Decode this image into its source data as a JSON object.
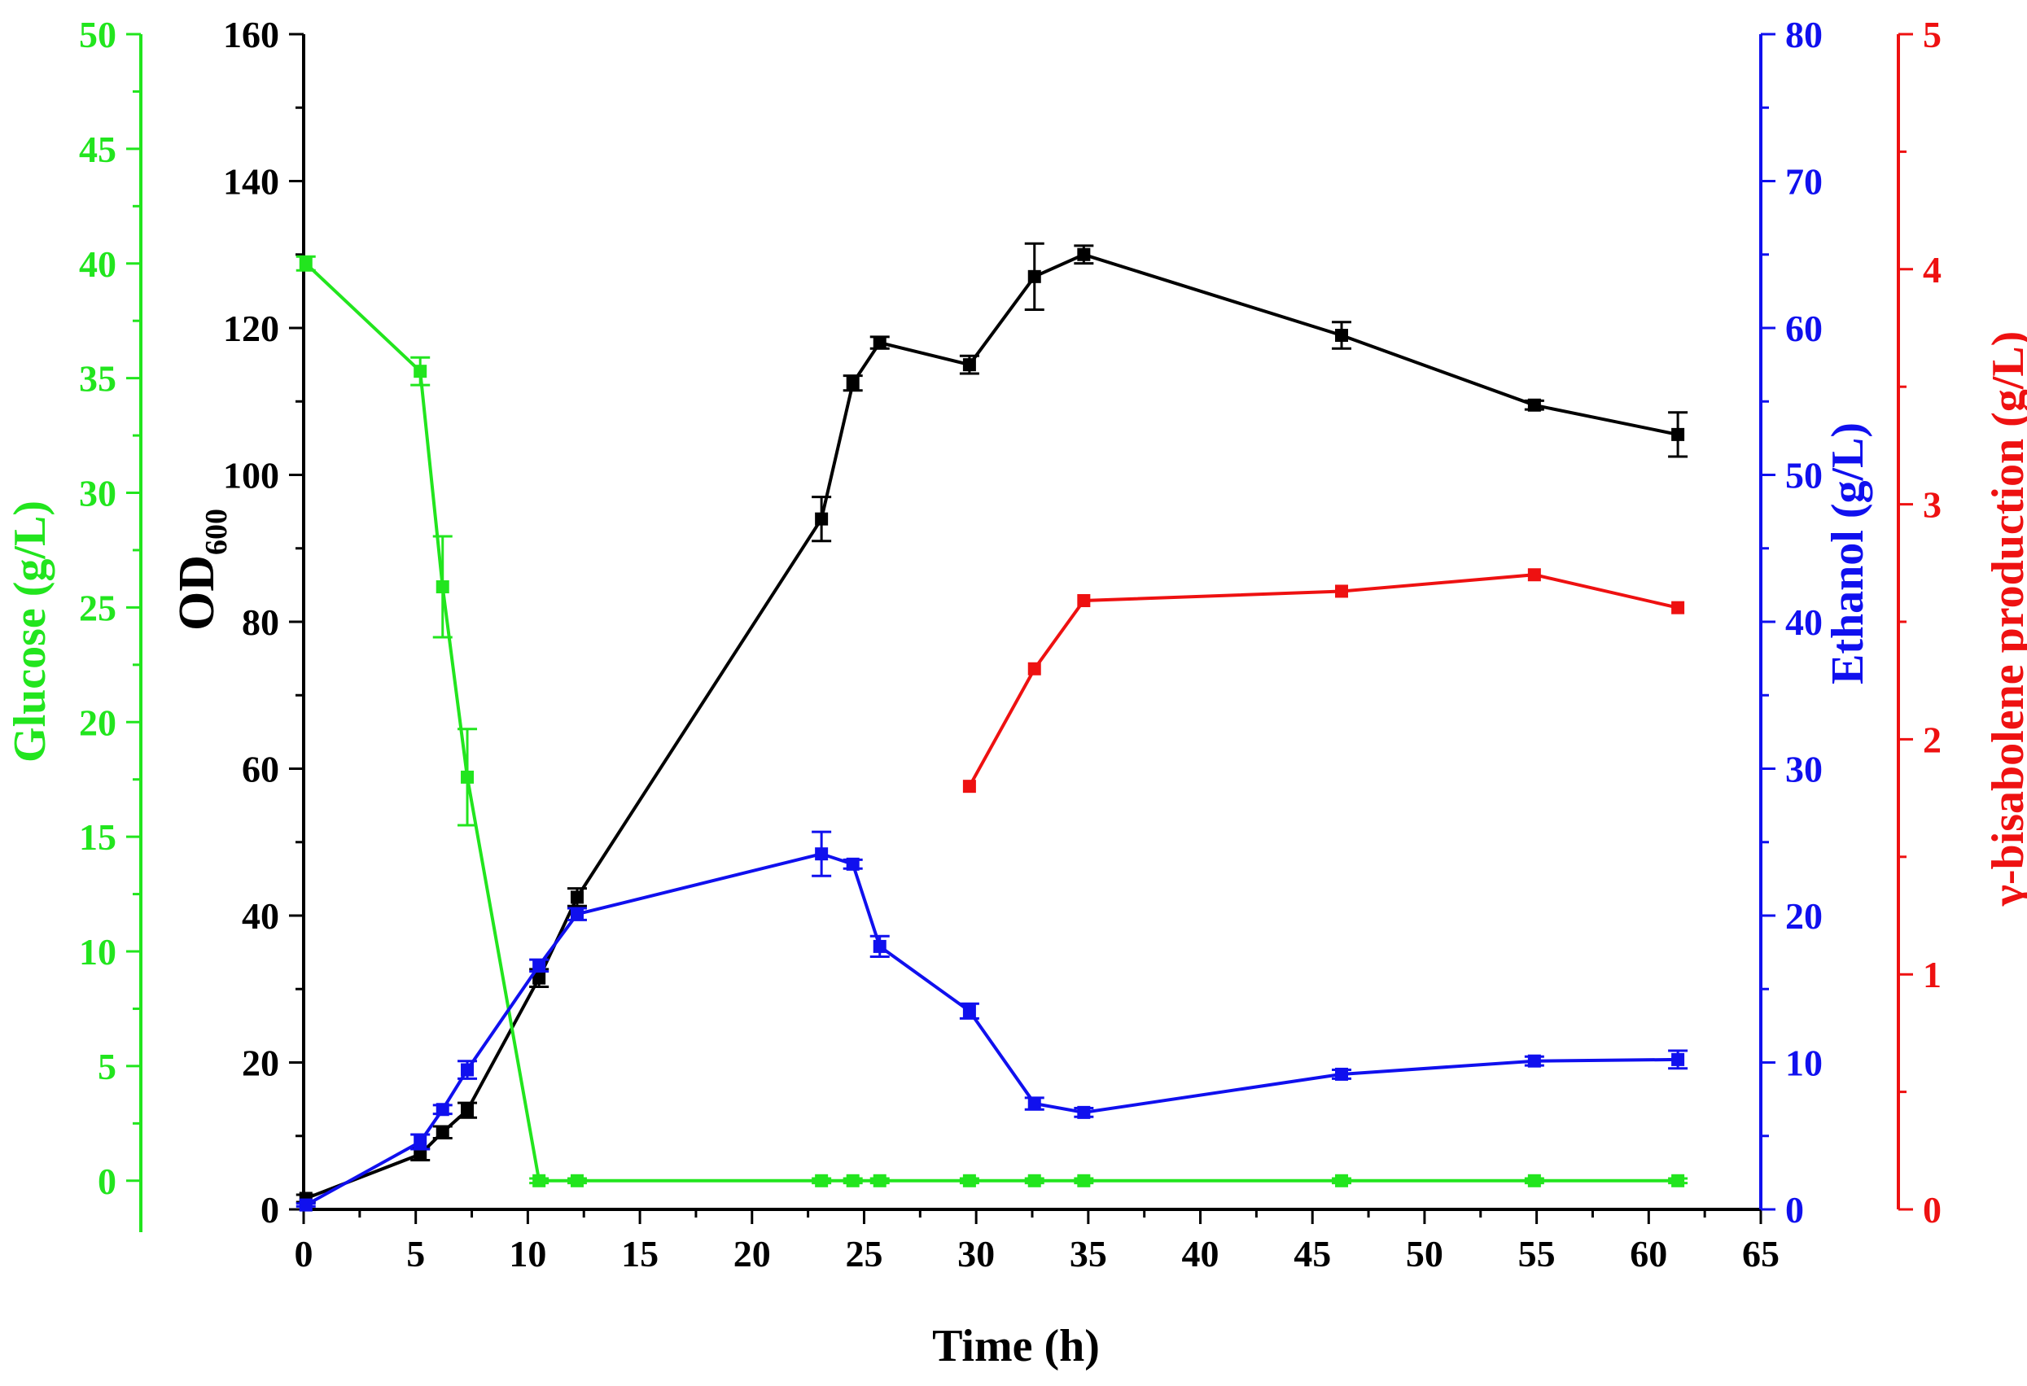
{
  "chart_data": {
    "type": "line",
    "xlabel": "Time (h)",
    "xlim": [
      0,
      65
    ],
    "xticks": [
      0,
      5,
      10,
      15,
      20,
      25,
      30,
      35,
      40,
      45,
      50,
      55,
      60,
      65
    ],
    "axes": {
      "od": {
        "label_main": "OD",
        "label_sub": "600",
        "range": [
          0,
          160
        ],
        "ticks": [
          0,
          20,
          40,
          60,
          80,
          100,
          120,
          140,
          160
        ],
        "minor_step": 10,
        "color": "#000000"
      },
      "glucose": {
        "label": "Glucose (g/L)",
        "range": [
          -1.25,
          50
        ],
        "ticks": [
          0,
          5,
          10,
          15,
          20,
          25,
          30,
          35,
          40,
          45,
          50
        ],
        "minor_step": 2.5,
        "color": "#22e51e"
      },
      "ethanol": {
        "label": "Ethanol (g/L)",
        "range": [
          0,
          80
        ],
        "ticks": [
          0,
          10,
          20,
          30,
          40,
          50,
          60,
          70,
          80
        ],
        "minor_step": 5,
        "color": "#1010ee"
      },
      "bisabolene": {
        "label": "γ-bisabolene production (g/L)",
        "range": [
          0,
          5
        ],
        "ticks": [
          0,
          1,
          2,
          3,
          4,
          5
        ],
        "minor_step": 0.5,
        "color": "#ee1111"
      }
    },
    "series": [
      {
        "name": "OD600",
        "axis": "od",
        "color": "#000000",
        "x": [
          0.1,
          5.2,
          6.2,
          7.3,
          10.5,
          12.2,
          23.1,
          24.5,
          25.7,
          29.7,
          32.6,
          34.8,
          46.3,
          54.9,
          61.3
        ],
        "y": [
          1.5,
          7.5,
          10.5,
          13.5,
          31.5,
          42.5,
          94,
          112.5,
          118,
          115,
          127,
          130,
          119,
          109.5,
          105.5
        ],
        "err": [
          0.5,
          0.8,
          0.8,
          1.0,
          1.2,
          1.2,
          3.0,
          1.0,
          0.8,
          1.2,
          4.5,
          1.2,
          1.8,
          0.6,
          3.0
        ]
      },
      {
        "name": "Glucose",
        "axis": "glucose",
        "color": "#22e51e",
        "x": [
          0.1,
          5.2,
          6.2,
          7.3,
          10.5,
          12.2,
          23.1,
          24.5,
          25.7,
          29.7,
          32.6,
          34.8,
          46.3,
          54.9,
          61.3
        ],
        "y": [
          40,
          35.3,
          25.9,
          17.6,
          0,
          0,
          0,
          0,
          0,
          0,
          0,
          0,
          0,
          0,
          0
        ],
        "err": [
          0.3,
          0.6,
          2.2,
          2.1,
          0.1,
          0.1,
          0.1,
          0.1,
          0.1,
          0.1,
          0.1,
          0.1,
          0.1,
          0.1,
          0.1
        ]
      },
      {
        "name": "Ethanol",
        "axis": "ethanol",
        "color": "#1010ee",
        "x": [
          0.1,
          5.2,
          6.2,
          7.3,
          10.5,
          12.2,
          23.1,
          24.5,
          25.7,
          29.7,
          32.6,
          34.8,
          46.3,
          54.9,
          61.3
        ],
        "y": [
          0.3,
          4.6,
          6.8,
          9.5,
          16.6,
          20.1,
          24.2,
          23.5,
          17.9,
          13.5,
          7.2,
          6.6,
          9.2,
          10.1,
          10.2
        ],
        "err": [
          0.1,
          0.5,
          0.3,
          0.6,
          0.4,
          0.4,
          1.5,
          0.3,
          0.7,
          0.5,
          0.4,
          0.3,
          0.3,
          0.3,
          0.6
        ]
      },
      {
        "name": "γ-bisabolene",
        "axis": "bisabolene",
        "color": "#ee1111",
        "x": [
          29.7,
          32.6,
          34.8,
          46.3,
          54.9,
          61.3
        ],
        "y": [
          1.8,
          2.3,
          2.59,
          2.63,
          2.7,
          2.56
        ],
        "err": [
          0,
          0,
          0,
          0,
          0,
          0
        ]
      }
    ]
  }
}
